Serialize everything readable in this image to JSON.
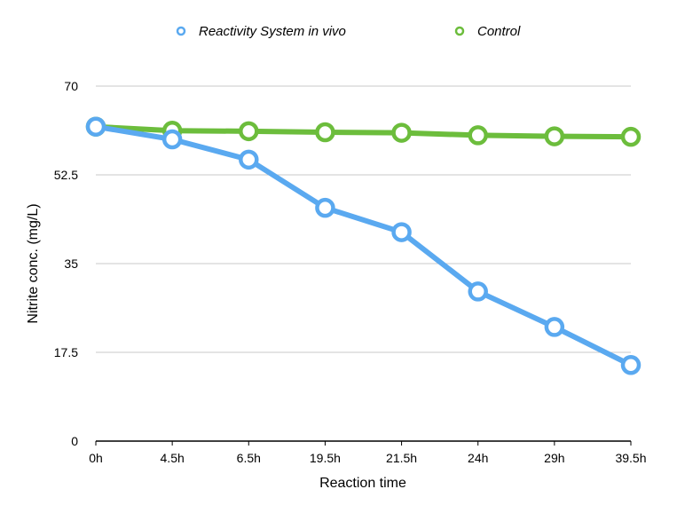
{
  "chart_data": {
    "type": "line",
    "categories": [
      "0h",
      "4.5h",
      "6.5h",
      "19.5h",
      "21.5h",
      "24h",
      "29h",
      "39.5h"
    ],
    "series": [
      {
        "name": "Reactivity System in vivo",
        "color": "#5aa9f0",
        "values": [
          62.0,
          59.5,
          55.5,
          46.0,
          41.2,
          29.5,
          22.5,
          15.0
        ]
      },
      {
        "name": "Control",
        "color": "#6cbd3c",
        "values": [
          62.0,
          61.2,
          61.1,
          60.9,
          60.8,
          60.3,
          60.1,
          60.0
        ]
      }
    ],
    "xlabel": "Reaction time",
    "ylabel": "Nitrite conc. (mg/L)",
    "yticks": [
      "0",
      "17.5",
      "35",
      "52.5",
      "70"
    ],
    "ylim": [
      0,
      70
    ],
    "grid": true,
    "legend_position": "top"
  }
}
